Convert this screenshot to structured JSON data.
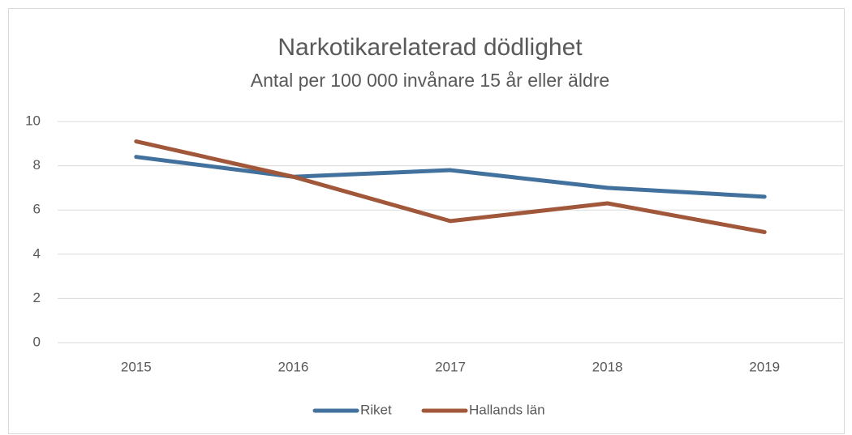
{
  "chart_data": {
    "type": "line",
    "title": "Narkotikarelaterad dödlighet",
    "subtitle": "Antal per 100 000 invånare 15 år eller äldre",
    "categories": [
      "2015",
      "2016",
      "2017",
      "2018",
      "2019"
    ],
    "series": [
      {
        "name": "Riket",
        "color": "#41719c",
        "values": [
          8.4,
          7.5,
          7.8,
          7.0,
          6.6
        ]
      },
      {
        "name": "Hallands län",
        "color": "#a0573a",
        "values": [
          9.1,
          7.5,
          5.5,
          6.3,
          5.0
        ]
      }
    ],
    "ylim": [
      0,
      10
    ],
    "yticks": [
      0,
      2,
      4,
      6,
      8,
      10
    ],
    "grid": true,
    "legend": "bottom"
  }
}
